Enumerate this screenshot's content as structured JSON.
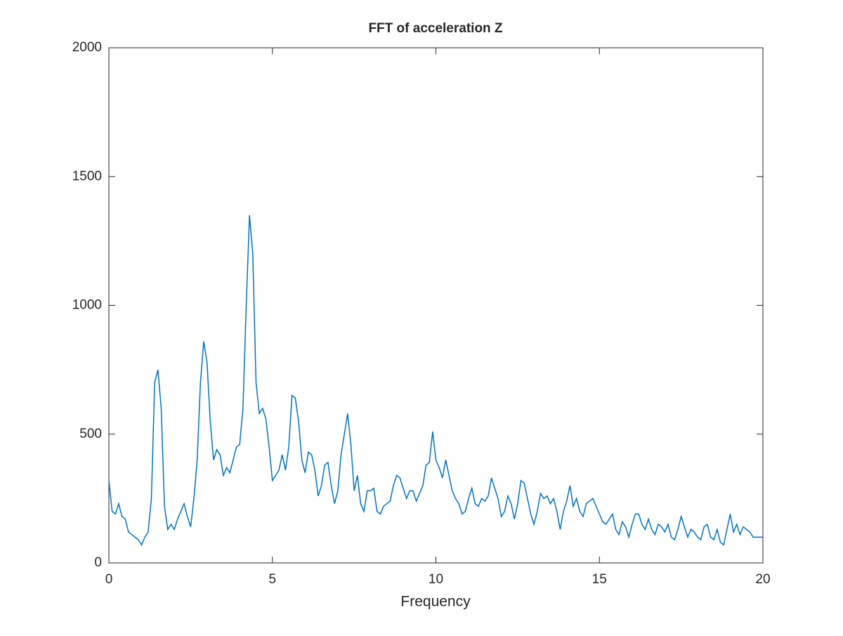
{
  "chart_data": {
    "type": "line",
    "title": "FFT of acceleration Z",
    "x_label": "Frequency",
    "x": [
      0,
      0.1,
      0.2,
      0.3,
      0.4,
      0.5,
      0.6,
      0.7,
      0.8,
      0.9,
      1,
      1.1,
      1.2,
      1.3,
      1.4,
      1.5,
      1.6,
      1.7,
      1.8,
      1.9,
      2,
      2.1,
      2.2,
      2.3,
      2.4,
      2.5,
      2.6,
      2.7,
      2.8,
      2.9,
      3,
      3.1,
      3.2,
      3.3,
      3.4,
      3.5,
      3.6,
      3.7,
      3.8,
      3.9,
      4,
      4.1,
      4.2,
      4.3,
      4.4,
      4.5,
      4.6,
      4.7,
      4.8,
      4.9,
      5,
      5.1,
      5.2,
      5.3,
      5.4,
      5.5,
      5.6,
      5.7,
      5.8,
      5.9,
      6,
      6.1,
      6.2,
      6.3,
      6.4,
      6.5,
      6.6,
      6.7,
      6.8,
      6.9,
      7,
      7.1,
      7.2,
      7.3,
      7.4,
      7.5,
      7.6,
      7.7,
      7.8,
      7.9,
      8,
      8.1,
      8.2,
      8.3,
      8.4,
      8.5,
      8.6,
      8.7,
      8.8,
      8.9,
      9,
      9.1,
      9.2,
      9.3,
      9.4,
      9.5,
      9.6,
      9.7,
      9.8,
      9.9,
      10,
      10.1,
      10.2,
      10.3,
      10.4,
      10.5,
      10.6,
      10.7,
      10.8,
      10.9,
      11,
      11.1,
      11.2,
      11.3,
      11.4,
      11.5,
      11.6,
      11.7,
      11.8,
      11.9,
      12,
      12.1,
      12.2,
      12.3,
      12.4,
      12.5,
      12.6,
      12.7,
      12.8,
      12.9,
      13,
      13.1,
      13.2,
      13.3,
      13.4,
      13.5,
      13.6,
      13.7,
      13.8,
      13.9,
      14,
      14.1,
      14.2,
      14.3,
      14.4,
      14.5,
      14.6,
      14.7,
      14.8,
      14.9,
      15,
      15.1,
      15.2,
      15.3,
      15.4,
      15.5,
      15.6,
      15.7,
      15.8,
      15.9,
      16,
      16.1,
      16.2,
      16.3,
      16.4,
      16.5,
      16.6,
      16.7,
      16.8,
      16.9,
      17,
      17.1,
      17.2,
      17.3,
      17.4,
      17.5,
      17.6,
      17.7,
      17.8,
      17.9,
      18,
      18.1,
      18.2,
      18.3,
      18.4,
      18.5,
      18.6,
      18.7,
      18.8,
      18.9,
      19,
      19.1,
      19.2,
      19.3,
      19.4,
      19.5,
      19.6,
      19.7,
      19.8,
      19.9,
      20
    ],
    "series": [
      {
        "color": "#0072bd",
        "values": [
          320,
          200,
          190,
          230,
          180,
          170,
          120,
          110,
          100,
          90,
          70,
          100,
          120,
          250,
          700,
          750,
          600,
          220,
          130,
          150,
          130,
          170,
          200,
          230,
          180,
          140,
          250,
          400,
          700,
          860,
          780,
          550,
          400,
          440,
          420,
          340,
          370,
          350,
          400,
          450,
          460,
          600,
          1000,
          1350,
          1200,
          700,
          580,
          600,
          560,
          450,
          320,
          340,
          360,
          420,
          360,
          450,
          650,
          640,
          550,
          400,
          350,
          430,
          420,
          360,
          260,
          300,
          380,
          390,
          300,
          230,
          280,
          420,
          500,
          580,
          460,
          280,
          340,
          230,
          200,
          280,
          280,
          290,
          200,
          190,
          220,
          230,
          240,
          300,
          340,
          330,
          290,
          250,
          280,
          280,
          240,
          270,
          300,
          380,
          390,
          510,
          400,
          370,
          330,
          400,
          340,
          280,
          250,
          230,
          190,
          200,
          250,
          290,
          230,
          220,
          250,
          240,
          260,
          330,
          290,
          250,
          180,
          200,
          260,
          230,
          170,
          230,
          320,
          310,
          250,
          190,
          150,
          200,
          270,
          250,
          260,
          230,
          250,
          200,
          130,
          200,
          240,
          300,
          220,
          250,
          200,
          180,
          230,
          240,
          250,
          220,
          190,
          160,
          150,
          170,
          190,
          130,
          110,
          160,
          140,
          100,
          150,
          190,
          190,
          150,
          130,
          170,
          130,
          110,
          150,
          140,
          120,
          150,
          100,
          90,
          130,
          180,
          140,
          100,
          130,
          120,
          100,
          90,
          140,
          150,
          100,
          90,
          130,
          80,
          70,
          130,
          190,
          120,
          150,
          110,
          140,
          130,
          120,
          100,
          100,
          100,
          100
        ]
      }
    ],
    "xlim": [
      0,
      20
    ],
    "xticks": [
      0,
      5,
      10,
      15,
      20
    ],
    "ylim": [
      0,
      2000
    ],
    "yticks": [
      0,
      500,
      1000,
      1500,
      2000
    ],
    "grid": false
  }
}
